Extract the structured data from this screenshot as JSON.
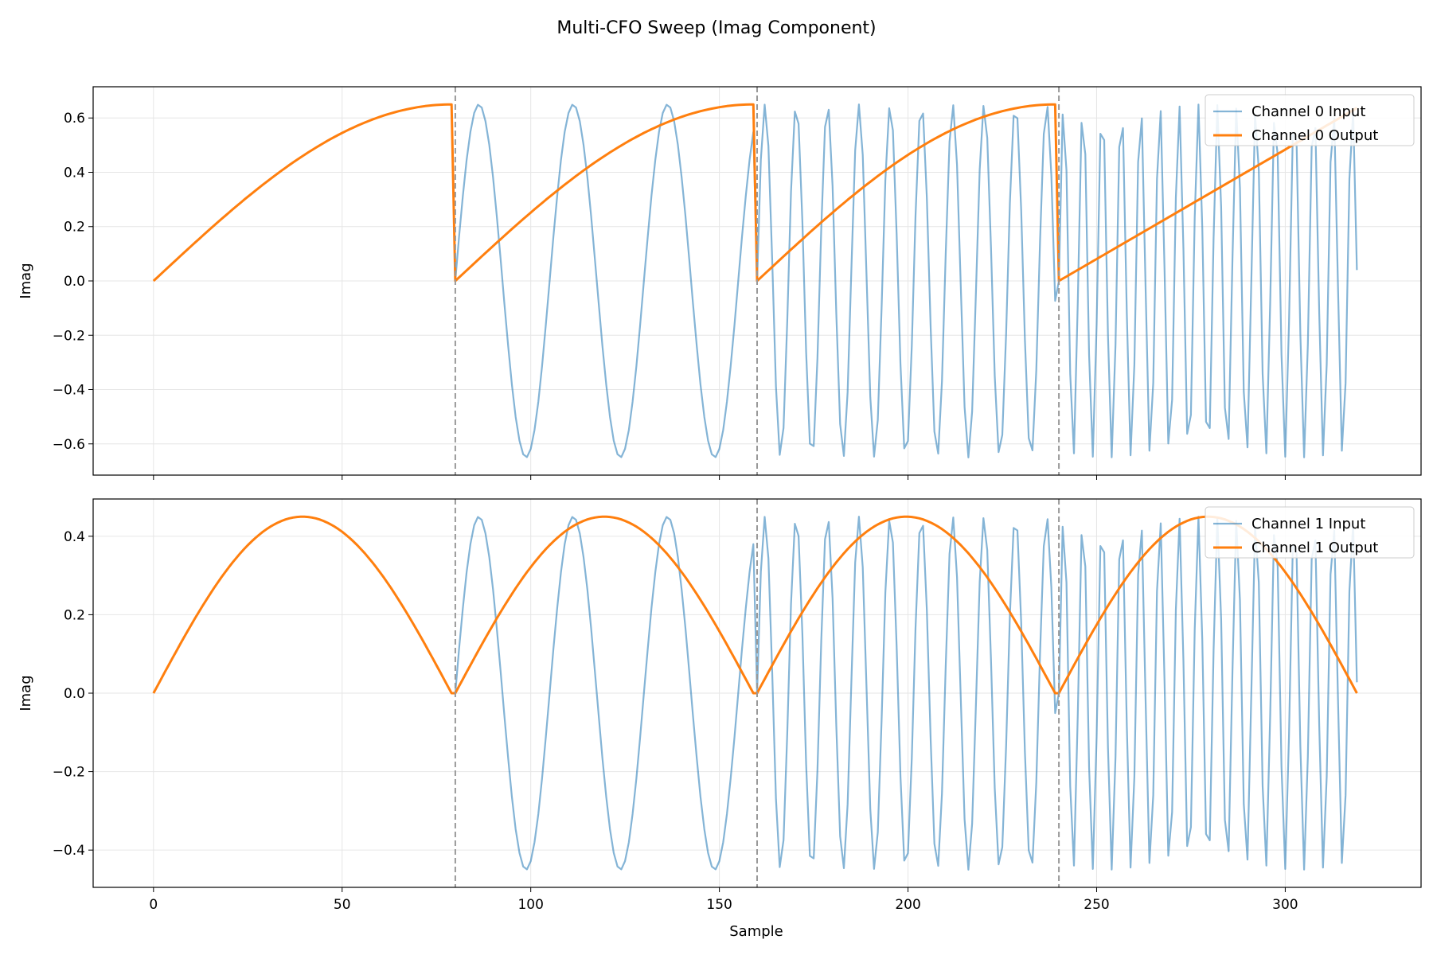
{
  "chart_data": {
    "type": "line",
    "title": "Multi-CFO Sweep (Imag Component)",
    "xlabel": "Sample",
    "xlim": [
      -16,
      336
    ],
    "xticks": [
      0,
      50,
      100,
      150,
      200,
      250,
      300
    ],
    "grid": true,
    "colors": {
      "input": "#1f77b4",
      "output": "#ff7f0e",
      "segment_line": "#999999"
    },
    "segment_boundaries": [
      80,
      160,
      240
    ],
    "segments": [
      {
        "start": 0,
        "end": 80,
        "input_period": 160,
        "note": ""
      },
      {
        "start": 80,
        "end": 160,
        "input_period": 25
      },
      {
        "start": 160,
        "end": 240,
        "input_period": 8.3
      },
      {
        "start": 240,
        "end": 320,
        "input_period": 5.1
      }
    ],
    "panels": [
      {
        "ylabel": "Imag",
        "ylim": [
          -0.715,
          0.715
        ],
        "yticks": [
          -0.6,
          -0.4,
          -0.2,
          0.0,
          0.2,
          0.4,
          0.6
        ],
        "yticklabels": [
          "−0.6",
          "−0.4",
          "−0.2",
          "0.0",
          "0.2",
          "0.4",
          "0.6"
        ],
        "amplitude": 0.65,
        "output_shape": "ramp",
        "legend_loc": "upper right",
        "series": [
          {
            "name": "Channel 0 Input",
            "role": "input"
          },
          {
            "name": "Channel 0 Output",
            "role": "output"
          }
        ]
      },
      {
        "ylabel": "Imag",
        "ylim": [
          -0.495,
          0.495
        ],
        "yticks": [
          -0.4,
          -0.2,
          0.0,
          0.2,
          0.4
        ],
        "yticklabels": [
          "−0.4",
          "−0.2",
          "0.0",
          "0.2",
          "0.4"
        ],
        "amplitude": 0.45,
        "output_shape": "arch",
        "legend_loc": "upper right",
        "series": [
          {
            "name": "Channel 1 Input",
            "role": "input"
          },
          {
            "name": "Channel 1 Output",
            "role": "output"
          }
        ]
      }
    ]
  }
}
